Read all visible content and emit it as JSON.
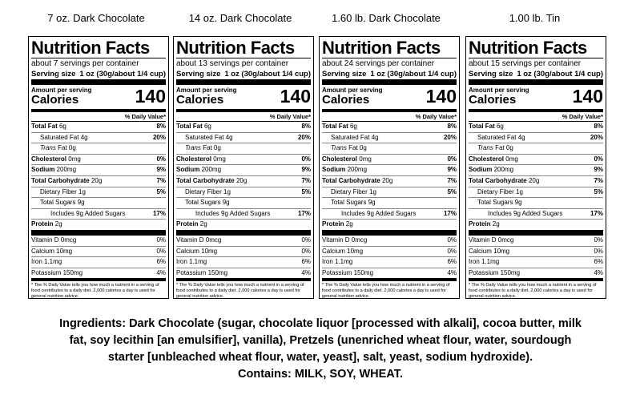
{
  "headings": [
    "7 oz. Dark Chocolate",
    "14 oz. Dark Chocolate",
    "1.60 lb. Dark Chocolate",
    "1.00 lb. Tin"
  ],
  "labels": [
    {
      "title": "Nutrition Facts",
      "servings_per_container": "about 7 servings per container",
      "serving_size_label": "Serving size",
      "serving_size_value": "1 oz (30g/about 1/4 cup)",
      "amount_per_serving": "Amount per serving",
      "calories_label": "Calories",
      "calories_value": "140",
      "dv_header": "% Daily Value*",
      "total_fat_label": "Total Fat",
      "total_fat_amount": "6g",
      "total_fat_dv": "8%",
      "sat_fat_label": "Saturated Fat 4g",
      "sat_fat_dv": "20%",
      "trans_fat_label": "Trans",
      "trans_fat_rest": "Fat 0g",
      "cholesterol_label": "Cholesterol",
      "cholesterol_amount": "0mg",
      "cholesterol_dv": "0%",
      "sodium_label": "Sodium",
      "sodium_amount": "200mg",
      "sodium_dv": "9%",
      "carb_label": "Total Carbohydrate",
      "carb_amount": "20g",
      "carb_dv": "7%",
      "fiber_label": "Dietary Fiber 1g",
      "fiber_dv": "5%",
      "sugars_label": "Total Sugars 9g",
      "added_sugars_label": "Includes 9g Added Sugars",
      "added_sugars_dv": "17%",
      "protein_label": "Protein",
      "protein_amount": "2g",
      "vitd_label": "Vitamin D 0mcg",
      "vitd_dv": "0%",
      "calcium_label": "Calcium 10mg",
      "calcium_dv": "0%",
      "iron_label": "Iron 1.1mg",
      "iron_dv": "6%",
      "potassium_label": "Potassium 150mg",
      "potassium_dv": "4%",
      "footnote": "* The % Daily Value tells you how much a nutrient in a serving of food contributes to a daily diet. 2,000 calories a day is used for general nutrition advice."
    },
    {
      "title": "Nutrition Facts",
      "servings_per_container": "about 13 servings per container",
      "serving_size_label": "Serving size",
      "serving_size_value": "1 oz (30g/about 1/4 cup)",
      "amount_per_serving": "Amount per serving",
      "calories_label": "Calories",
      "calories_value": "140",
      "dv_header": "% Daily Value*",
      "total_fat_label": "Total Fat",
      "total_fat_amount": "6g",
      "total_fat_dv": "8%",
      "sat_fat_label": "Saturated Fat 4g",
      "sat_fat_dv": "20%",
      "trans_fat_label": "Trans",
      "trans_fat_rest": "Fat 0g",
      "cholesterol_label": "Cholesterol",
      "cholesterol_amount": "0mg",
      "cholesterol_dv": "0%",
      "sodium_label": "Sodium",
      "sodium_amount": "200mg",
      "sodium_dv": "9%",
      "carb_label": "Total Carbohydrate",
      "carb_amount": "20g",
      "carb_dv": "7%",
      "fiber_label": "Dietary Fiber 1g",
      "fiber_dv": "5%",
      "sugars_label": "Total Sugars 9g",
      "added_sugars_label": "Includes 9g Added Sugars",
      "added_sugars_dv": "17%",
      "protein_label": "Protein",
      "protein_amount": "2g",
      "vitd_label": "Vitamin D 0mcg",
      "vitd_dv": "0%",
      "calcium_label": "Calcium 10mg",
      "calcium_dv": "0%",
      "iron_label": "Iron 1.1mg",
      "iron_dv": "6%",
      "potassium_label": "Potassium 150mg",
      "potassium_dv": "4%",
      "footnote": "* The % Daily Value tells you how much a nutrient in a serving of food contributes to a daily diet. 2,000 calories a day is used for general nutrition advice."
    },
    {
      "title": "Nutrition Facts",
      "servings_per_container": "about 24 servings per container",
      "serving_size_label": "Serving size",
      "serving_size_value": "1 oz (30g/about 1/4 cup)",
      "amount_per_serving": "Amount per serving",
      "calories_label": "Calories",
      "calories_value": "140",
      "dv_header": "% Daily Value*",
      "total_fat_label": "Total Fat",
      "total_fat_amount": "6g",
      "total_fat_dv": "8%",
      "sat_fat_label": "Saturated Fat 4g",
      "sat_fat_dv": "20%",
      "trans_fat_label": "Trans",
      "trans_fat_rest": "Fat 0g",
      "cholesterol_label": "Cholesterol",
      "cholesterol_amount": "0mg",
      "cholesterol_dv": "0%",
      "sodium_label": "Sodium",
      "sodium_amount": "200mg",
      "sodium_dv": "9%",
      "carb_label": "Total Carbohydrate",
      "carb_amount": "20g",
      "carb_dv": "7%",
      "fiber_label": "Dietary Fiber 1g",
      "fiber_dv": "5%",
      "sugars_label": "Total Sugars 9g",
      "added_sugars_label": "Includes 9g Added Sugars",
      "added_sugars_dv": "17%",
      "protein_label": "Protein",
      "protein_amount": "2g",
      "vitd_label": "Vitamin D 0mcg",
      "vitd_dv": "0%",
      "calcium_label": "Calcium 10mg",
      "calcium_dv": "0%",
      "iron_label": "Iron 1.1mg",
      "iron_dv": "6%",
      "potassium_label": "Potassium 150mg",
      "potassium_dv": "4%",
      "footnote": "* The % Daily Value tells you how much a nutrient in a serving of food contributes to a daily diet. 2,000 calories a day is used for general nutrition advice."
    },
    {
      "title": "Nutrition Facts",
      "servings_per_container": "about 15 servings per container",
      "serving_size_label": "Serving size",
      "serving_size_value": "1 oz (30g/about 1/4 cup)",
      "amount_per_serving": "Amount per serving",
      "calories_label": "Calories",
      "calories_value": "140",
      "dv_header": "% Daily Value*",
      "total_fat_label": "Total Fat",
      "total_fat_amount": "6g",
      "total_fat_dv": "8%",
      "sat_fat_label": "Saturated Fat 4g",
      "sat_fat_dv": "20%",
      "trans_fat_label": "Trans",
      "trans_fat_rest": "Fat 0g",
      "cholesterol_label": "Cholesterol",
      "cholesterol_amount": "0mg",
      "cholesterol_dv": "0%",
      "sodium_label": "Sodium",
      "sodium_amount": "200mg",
      "sodium_dv": "9%",
      "carb_label": "Total Carbohydrate",
      "carb_amount": "20g",
      "carb_dv": "7%",
      "fiber_label": "Dietary Fiber 1g",
      "fiber_dv": "5%",
      "sugars_label": "Total Sugars 9g",
      "added_sugars_label": "Includes 9g Added Sugars",
      "added_sugars_dv": "17%",
      "protein_label": "Protein",
      "protein_amount": "2g",
      "vitd_label": "Vitamin D 0mcg",
      "vitd_dv": "0%",
      "calcium_label": "Calcium 10mg",
      "calcium_dv": "0%",
      "iron_label": "Iron 1.1mg",
      "iron_dv": "6%",
      "potassium_label": "Potassium 150mg",
      "potassium_dv": "4%",
      "footnote": "* The % Daily Value tells you how much a nutrient in a serving of food contributes to a daily diet. 2,000 calories a day is used for general nutrition advice."
    }
  ],
  "ingredients": {
    "lines": [
      "Ingredients: Dark Chocolate (sugar, chocolate liquor [processed with alkali], cocoa butter, milk",
      "fat, soy lecithin [an emulsifier], vanilla), Pretzels (unenriched wheat flour, water, sourdough",
      "starter [unbleached wheat flour, water, yeast], salt, yeast, sodium hydroxide).",
      "Contains: MILK, SOY, WHEAT."
    ]
  }
}
